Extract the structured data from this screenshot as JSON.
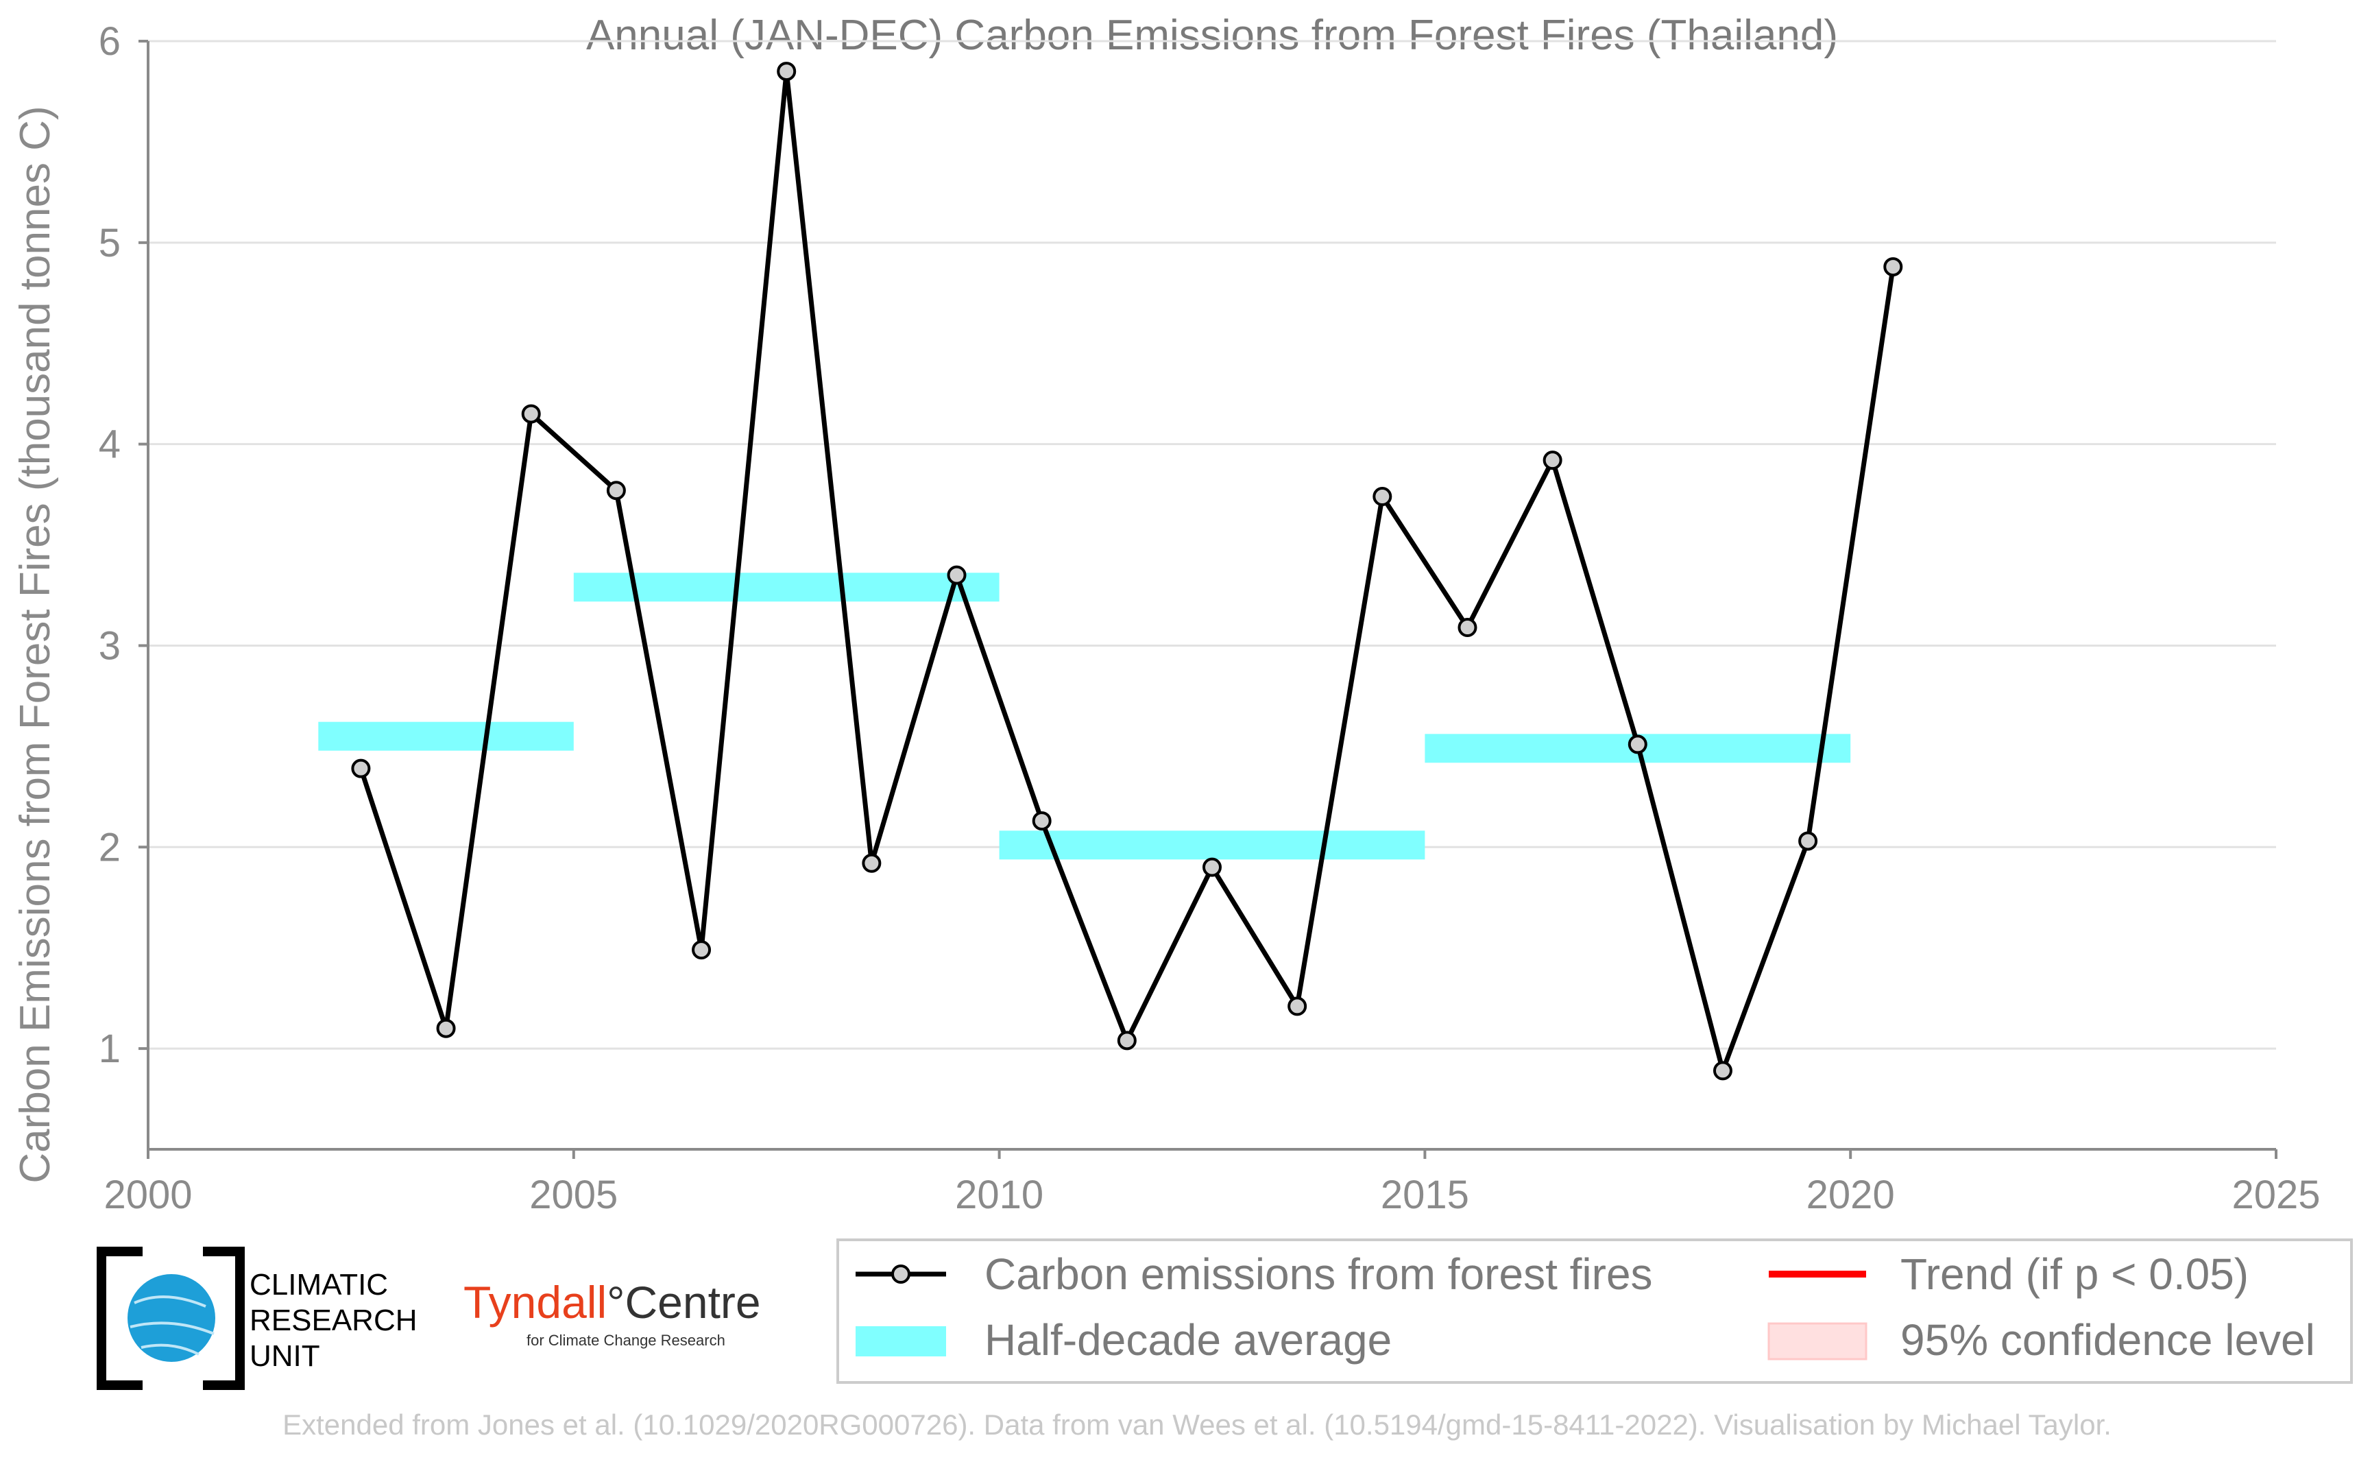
{
  "chart_data": {
    "type": "line",
    "title": "Annual (JAN-DEC) Carbon Emissions from Forest Fires (Thailand)",
    "xlabel": "",
    "ylabel": "Carbon Emissions from Forest Fires (thousand tonnes C)",
    "xlim": [
      2000,
      2025
    ],
    "ylim": [
      0.5,
      6.0
    ],
    "xticks": [
      2000,
      2005,
      2010,
      2015,
      2020,
      2025
    ],
    "yticks": [
      1,
      2,
      3,
      4,
      5,
      6
    ],
    "grid": "horizontal",
    "series": [
      {
        "name": "Carbon emissions from forest fires",
        "color": "#000000",
        "marker_fill": "#d0d0d0",
        "x": [
          2002.5,
          2003.5,
          2004.5,
          2005.5,
          2006.5,
          2007.5,
          2008.5,
          2009.5,
          2010.5,
          2011.5,
          2012.5,
          2013.5,
          2014.5,
          2015.5,
          2016.5,
          2017.5,
          2018.5,
          2019.5,
          2020.5
        ],
        "y": [
          2.39,
          1.1,
          4.15,
          3.77,
          1.49,
          5.85,
          1.92,
          3.35,
          2.13,
          1.04,
          1.9,
          1.21,
          3.74,
          3.09,
          3.92,
          2.51,
          0.89,
          2.03,
          4.88
        ]
      }
    ],
    "half_decade_average": {
      "name": "Half-decade average",
      "color": "#80ffff",
      "segments": [
        {
          "x0": 2002,
          "x1": 2005,
          "y": 2.55
        },
        {
          "x0": 2005,
          "x1": 2010,
          "y": 3.29
        },
        {
          "x0": 2010,
          "x1": 2015,
          "y": 2.01
        },
        {
          "x0": 2015,
          "x1": 2020,
          "y": 2.49
        }
      ]
    },
    "legend": {
      "placement": "bottom-right",
      "entries": [
        {
          "label": "Carbon emissions from forest fires",
          "kind": "line-marker",
          "color": "#000000"
        },
        {
          "label": "Trend (if p < 0.05)",
          "kind": "line",
          "color": "#ff0000"
        },
        {
          "label": "Half-decade average",
          "kind": "band",
          "color": "#80ffff"
        },
        {
          "label": "95% confidence level",
          "kind": "patch",
          "color": "#ffe0e0"
        }
      ]
    }
  },
  "logos": {
    "cru": [
      "CLIMATIC",
      "RESEARCH",
      "UNIT"
    ],
    "tyndall_main_red": "Tyndall",
    "tyndall_main_dark": "°Centre",
    "tyndall_sub": "for Climate Change Research"
  },
  "footer": "Extended from Jones et al. (10.1029/2020RG000726). Data from van Wees et al. (10.5194/gmd-15-8411-2022). Visualisation by Michael Taylor."
}
